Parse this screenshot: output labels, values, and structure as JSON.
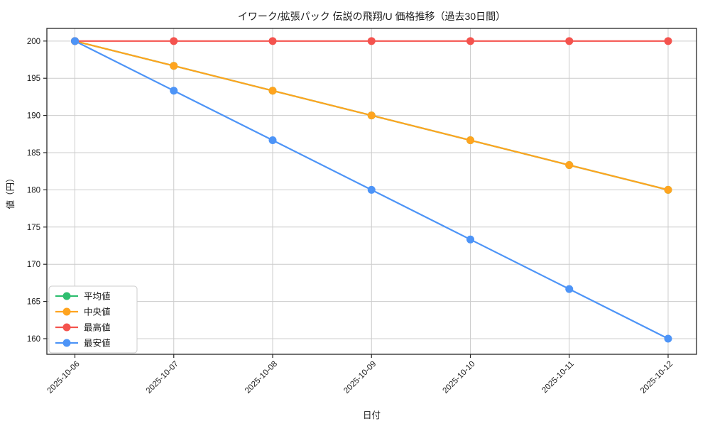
{
  "chart_data": {
    "type": "line",
    "title": "イワーク/拡張パック 伝説の飛翔/U 価格推移（過去30日間）",
    "xlabel": "日付",
    "ylabel": "値（円）",
    "categories": [
      "2025-10-06",
      "2025-10-07",
      "2025-10-08",
      "2025-10-09",
      "2025-10-10",
      "2025-10-11",
      "2025-10-12"
    ],
    "series": [
      {
        "name": "平均値",
        "color": "#2fbe70",
        "values": [
          200,
          196.67,
          193.33,
          190,
          186.67,
          183.33,
          180
        ]
      },
      {
        "name": "中央値",
        "color": "#ffa41f",
        "values": [
          200,
          196.67,
          193.33,
          190,
          186.67,
          183.33,
          180
        ]
      },
      {
        "name": "最高値",
        "color": "#f4534e",
        "values": [
          200,
          200,
          200,
          200,
          200,
          200,
          200
        ]
      },
      {
        "name": "最安値",
        "color": "#4d94f7",
        "values": [
          200,
          193.33,
          186.67,
          180,
          173.33,
          166.67,
          160
        ]
      }
    ],
    "yticks": [
      160,
      165,
      170,
      175,
      180,
      185,
      190,
      195,
      200
    ],
    "ylim": [
      157.9,
      201.7
    ],
    "grid": true,
    "legend_position": "lower-left",
    "marker": "circle",
    "x_tick_rotation": 45,
    "colors": {
      "grid": "#cccccc",
      "spine": "#262626",
      "text": "#1a1a1a",
      "legend_border": "#cccccc",
      "legend_bg": "#ffffff"
    }
  }
}
